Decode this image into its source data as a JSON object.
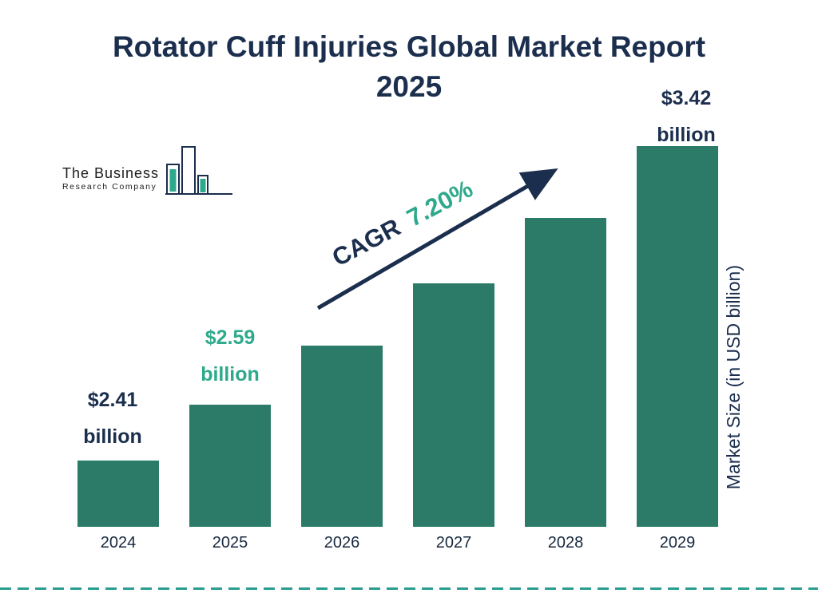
{
  "title": {
    "line1": "Rotator Cuff Injuries Global Market Report",
    "line2": "2025"
  },
  "logo": {
    "line1": "The Business",
    "line2": "Research Company"
  },
  "cagr_label": {
    "prefix": "CAGR",
    "value": "7.20%"
  },
  "ylabel": "Market Size (in USD billion)",
  "annotations": {
    "y2024": {
      "line1": "$2.41",
      "line2": "billion"
    },
    "y2025": {
      "line1": "$2.59",
      "line2": "billion"
    },
    "y2029": {
      "line1": "$3.42",
      "line2": "billion"
    }
  },
  "colors": {
    "bar": "#2b7b68",
    "navy": "#1b2e4d",
    "teal_accent": "#2fa98c",
    "dashed_line": "#2a9d8f"
  },
  "chart_data": {
    "type": "bar",
    "title": "Rotator Cuff Injuries Global Market Report 2025",
    "categories": [
      "2024",
      "2025",
      "2026",
      "2027",
      "2028",
      "2029"
    ],
    "values": [
      2.41,
      2.59,
      2.78,
      2.98,
      3.19,
      3.42
    ],
    "value_labels_shown": {
      "2024": "$2.41 billion",
      "2025": "$2.59 billion",
      "2029": "$3.42 billion"
    },
    "cagr": "7.20%",
    "xlabel": "",
    "ylabel": "Market Size (in USD billion)",
    "ylim": [
      2.2,
      3.6
    ],
    "grid": false,
    "legend": false,
    "bar_color": "#2b7b68"
  }
}
